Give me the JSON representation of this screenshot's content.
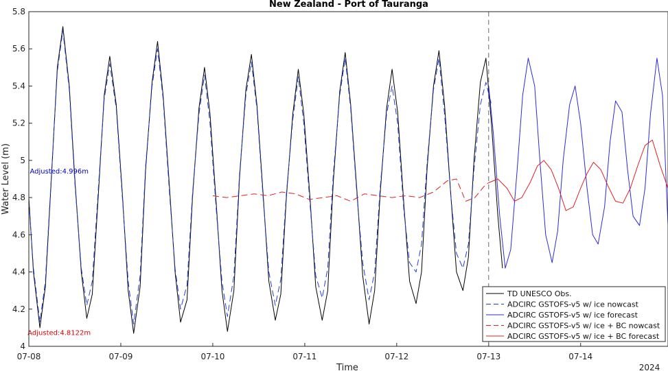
{
  "chart_data": {
    "type": "line",
    "title": "New Zealand - Port of Tauranga",
    "xlabel": "Time",
    "ylabel": "Water Level (m)",
    "ylim": [
      4,
      5.8
    ],
    "xlim": [
      0,
      6.95
    ],
    "yticks": [
      4,
      4.2,
      4.4,
      4.6,
      4.8,
      5,
      5.2,
      5.4,
      5.6,
      5.8
    ],
    "xticks": [
      {
        "x": 0,
        "label": "07-08"
      },
      {
        "x": 1,
        "label": "07-09"
      },
      {
        "x": 2,
        "label": "07-10"
      },
      {
        "x": 3,
        "label": "07-11"
      },
      {
        "x": 4,
        "label": "07-12"
      },
      {
        "x": 5,
        "label": "07-13"
      },
      {
        "x": 6,
        "label": "07-14"
      }
    ],
    "year_label": "2024",
    "forecast_start_x": 5.0,
    "grid": false,
    "legend_position": "bottom-right",
    "annotations": [
      {
        "text": "Adjusted:4.996m",
        "color": "#0000cc",
        "x": 0.33,
        "y": 4.93
      },
      {
        "text": "Adjusted:4.8122m",
        "color": "#e00000",
        "x": 0.33,
        "y": 4.06
      }
    ],
    "series": [
      {
        "name": "TD UNESCO Obs.",
        "color": "#000000",
        "dash": "solid",
        "x": [
          0,
          0.05,
          0.12,
          0.18,
          0.25,
          0.31,
          0.37,
          0.44,
          0.5,
          0.57,
          0.63,
          0.69,
          0.76,
          0.82,
          0.88,
          0.95,
          1.02,
          1.08,
          1.14,
          1.21,
          1.27,
          1.34,
          1.4,
          1.46,
          1.53,
          1.59,
          1.65,
          1.72,
          1.78,
          1.85,
          1.91,
          1.97,
          2.04,
          2.1,
          2.16,
          2.23,
          2.29,
          2.36,
          2.42,
          2.48,
          2.55,
          2.61,
          2.68,
          2.74,
          2.8,
          2.87,
          2.93,
          2.99,
          3.06,
          3.12,
          3.19,
          3.25,
          3.31,
          3.38,
          3.44,
          3.5,
          3.57,
          3.63,
          3.7,
          3.76,
          3.82,
          3.89,
          3.95,
          4.01,
          4.08,
          4.14,
          4.21,
          4.27,
          4.33,
          4.4,
          4.46,
          4.52,
          4.59,
          4.65,
          4.72,
          4.78,
          4.84,
          4.91,
          4.97,
          5.03,
          5.1,
          5.15
        ],
        "y": [
          4.8,
          4.4,
          4.1,
          4.32,
          4.95,
          5.5,
          5.72,
          5.4,
          4.9,
          4.4,
          4.15,
          4.28,
          4.85,
          5.35,
          5.56,
          5.3,
          4.8,
          4.3,
          4.07,
          4.32,
          4.95,
          5.42,
          5.64,
          5.35,
          4.85,
          4.4,
          4.13,
          4.25,
          4.8,
          5.28,
          5.5,
          5.25,
          4.75,
          4.3,
          4.08,
          4.3,
          4.9,
          5.38,
          5.57,
          5.3,
          4.8,
          4.35,
          4.14,
          4.28,
          4.8,
          5.25,
          5.49,
          5.25,
          4.78,
          4.32,
          4.14,
          4.3,
          4.88,
          5.37,
          5.58,
          5.3,
          4.82,
          4.38,
          4.12,
          4.3,
          4.82,
          5.28,
          5.49,
          5.26,
          4.75,
          4.35,
          4.23,
          4.4,
          4.95,
          5.4,
          5.59,
          5.3,
          4.8,
          4.4,
          4.3,
          4.48,
          5.0,
          5.42,
          5.55,
          5.2,
          4.7,
          4.42
        ]
      },
      {
        "name": "ADCIRC GSTOFS-v5 w/ ice nowcast",
        "color": "#1f3fd0",
        "dash": "dashed",
        "x": [
          0,
          0.05,
          0.12,
          0.18,
          0.25,
          0.31,
          0.37,
          0.44,
          0.5,
          0.57,
          0.63,
          0.69,
          0.76,
          0.82,
          0.88,
          0.95,
          1.02,
          1.08,
          1.14,
          1.21,
          1.27,
          1.34,
          1.4,
          1.46,
          1.53,
          1.59,
          1.65,
          1.72,
          1.78,
          1.85,
          1.91,
          1.97,
          2.04,
          2.1,
          2.16,
          2.23,
          2.29,
          2.36,
          2.42,
          2.48,
          2.55,
          2.61,
          2.68,
          2.74,
          2.8,
          2.87,
          2.93,
          2.99,
          3.06,
          3.12,
          3.19,
          3.25,
          3.31,
          3.38,
          3.44,
          3.5,
          3.57,
          3.63,
          3.7,
          3.76,
          3.82,
          3.89,
          3.95,
          4.01,
          4.08,
          4.14,
          4.21,
          4.27,
          4.33,
          4.4,
          4.46,
          4.52,
          4.59,
          4.65,
          4.72,
          4.78,
          4.84,
          4.91,
          4.97,
          5.03
        ],
        "y": [
          4.78,
          4.42,
          4.13,
          4.35,
          4.96,
          5.48,
          5.7,
          5.38,
          4.88,
          4.42,
          4.22,
          4.35,
          4.88,
          5.33,
          5.52,
          5.28,
          4.78,
          4.35,
          4.12,
          4.38,
          4.97,
          5.4,
          5.6,
          5.33,
          4.82,
          4.42,
          4.2,
          4.33,
          4.82,
          5.25,
          5.46,
          5.2,
          4.72,
          4.35,
          4.16,
          4.38,
          4.92,
          5.35,
          5.53,
          5.28,
          4.78,
          4.4,
          4.22,
          4.36,
          4.82,
          5.22,
          5.45,
          5.2,
          4.75,
          4.38,
          4.26,
          4.42,
          4.92,
          5.35,
          5.55,
          5.28,
          4.8,
          4.45,
          4.25,
          4.4,
          4.85,
          5.25,
          5.4,
          5.2,
          4.72,
          4.45,
          4.4,
          4.55,
          4.98,
          5.38,
          5.55,
          5.25,
          4.8,
          4.5,
          4.42,
          4.55,
          4.95,
          5.3,
          5.42,
          5.3
        ]
      },
      {
        "name": "ADCIRC GSTOFS-v5 w/ ice forecast",
        "color": "#2b2bd6",
        "dash": "solid",
        "x": [
          5.0,
          5.05,
          5.12,
          5.18,
          5.24,
          5.31,
          5.37,
          5.43,
          5.5,
          5.56,
          5.62,
          5.69,
          5.75,
          5.81,
          5.88,
          5.94,
          6.0,
          6.07,
          6.13,
          6.19,
          6.26,
          6.32,
          6.38,
          6.45,
          6.51,
          6.57,
          6.64,
          6.7,
          6.76,
          6.83,
          6.89,
          6.95
        ],
        "y": [
          5.4,
          5.15,
          4.7,
          4.42,
          4.52,
          4.95,
          5.35,
          5.55,
          5.4,
          4.98,
          4.6,
          4.45,
          4.62,
          5.0,
          5.3,
          5.4,
          5.2,
          4.85,
          4.6,
          4.55,
          4.75,
          5.1,
          5.32,
          5.26,
          4.95,
          4.7,
          4.65,
          4.85,
          5.25,
          5.55,
          5.35,
          4.65
        ]
      },
      {
        "name": "ADCIRC GSTOFS-v5 w/ ice + BC nowcast",
        "color": "#e02020",
        "dash": "dashed",
        "x": [
          2.0,
          2.15,
          2.3,
          2.45,
          2.6,
          2.75,
          2.9,
          3.05,
          3.2,
          3.35,
          3.5,
          3.65,
          3.8,
          3.95,
          4.1,
          4.25,
          4.4,
          4.55,
          4.65,
          4.75,
          4.85,
          4.95,
          5.0
        ],
        "y": [
          4.81,
          4.8,
          4.81,
          4.82,
          4.81,
          4.83,
          4.82,
          4.79,
          4.8,
          4.81,
          4.78,
          4.82,
          4.81,
          4.8,
          4.81,
          4.8,
          4.83,
          4.89,
          4.9,
          4.78,
          4.8,
          4.86,
          4.88
        ]
      },
      {
        "name": "ADCIRC GSTOFS-v5 w/ ice + BC forecast",
        "color": "#e02020",
        "dash": "solid",
        "x": [
          5.0,
          5.1,
          5.2,
          5.28,
          5.36,
          5.45,
          5.53,
          5.6,
          5.68,
          5.76,
          5.84,
          5.92,
          6.0,
          6.07,
          6.14,
          6.22,
          6.3,
          6.38,
          6.46,
          6.54,
          6.62,
          6.7,
          6.78,
          6.86,
          6.95
        ],
        "y": [
          4.88,
          4.9,
          4.85,
          4.78,
          4.8,
          4.88,
          4.97,
          5.0,
          4.95,
          4.85,
          4.73,
          4.75,
          4.85,
          4.93,
          4.99,
          4.95,
          4.86,
          4.78,
          4.77,
          4.85,
          4.97,
          5.08,
          5.11,
          4.98,
          4.85
        ]
      }
    ]
  }
}
